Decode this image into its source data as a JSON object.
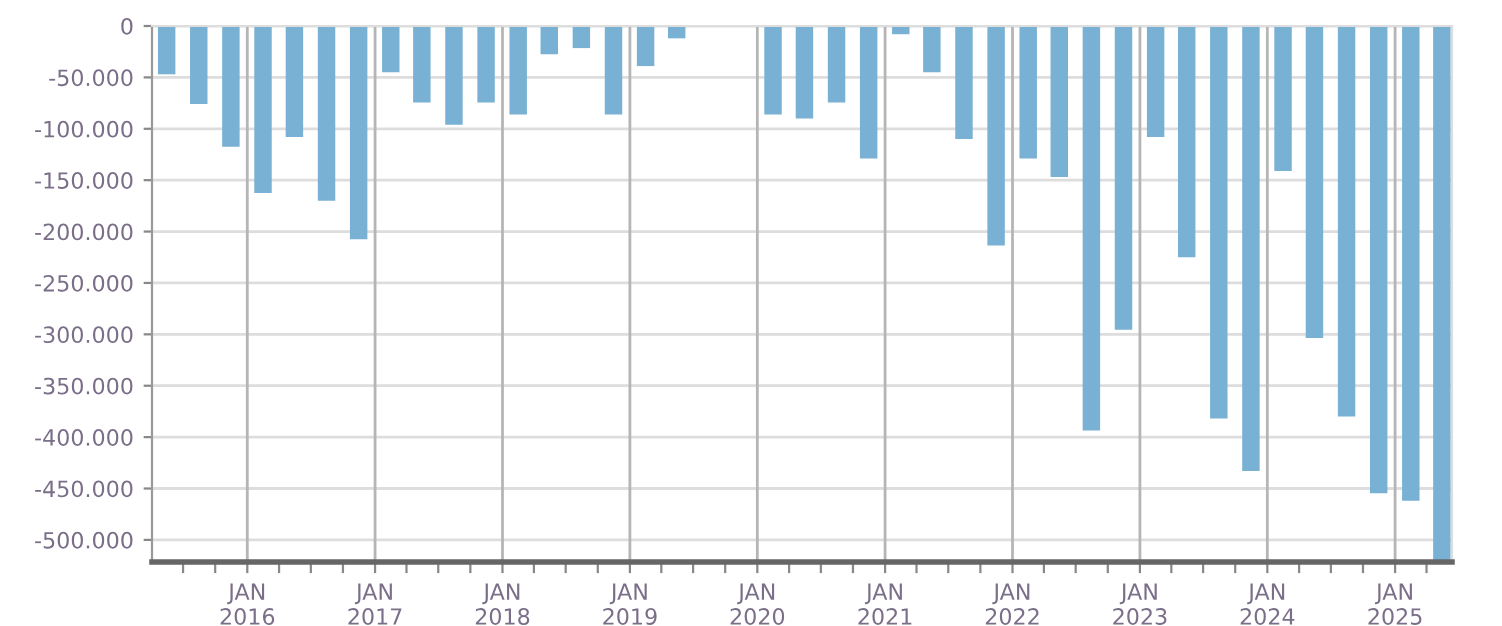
{
  "chart_data": {
    "type": "bar",
    "color": "#78b1d3",
    "grid": true,
    "x": [
      "2015-05-15",
      "2015-08-15",
      "2015-11-15",
      "2016-02-15",
      "2016-05-15",
      "2016-08-15",
      "2016-11-15",
      "2017-02-15",
      "2017-05-15",
      "2017-08-15",
      "2017-11-15",
      "2018-02-15",
      "2018-05-15",
      "2018-08-15",
      "2018-11-15",
      "2019-02-15",
      "2019-05-15",
      "2019-08-15",
      "2019-11-15",
      "2020-02-15",
      "2020-05-15",
      "2020-08-15",
      "2020-11-15",
      "2021-02-15",
      "2021-05-15",
      "2021-08-15",
      "2021-11-15",
      "2022-02-15",
      "2022-05-15",
      "2022-08-15",
      "2022-11-15",
      "2023-02-15",
      "2023-05-15",
      "2023-08-15",
      "2023-11-15",
      "2024-02-15",
      "2024-05-15",
      "2024-08-15",
      "2024-11-15",
      "2025-02-15",
      "2025-05-15"
    ],
    "values": [
      -47000,
      -76000,
      -117500,
      -162500,
      -108000,
      -170000,
      -207500,
      -45000,
      -74500,
      -96000,
      -74500,
      -86000,
      -27500,
      -21500,
      -86000,
      -39000,
      -12000,
      null,
      null,
      -86000,
      -90000,
      -74500,
      -129000,
      -8000,
      -45000,
      -110000,
      -213500,
      -129000,
      -147000,
      -393500,
      -295500,
      -108000,
      -225000,
      -382000,
      -433000,
      -141000,
      -303500,
      -380000,
      -454500,
      -462000,
      -521000
    ],
    "xlim": [
      "2015-04-03",
      "2025-06-13"
    ],
    "xticks": [
      {
        "value": "2015-07-01",
        "label": null
      },
      {
        "value": "2015-10-01",
        "label": null
      },
      {
        "value": "2016-01-01",
        "label": "JAN\n2016"
      },
      {
        "value": "2016-04-01",
        "label": null
      },
      {
        "value": "2016-07-01",
        "label": null
      },
      {
        "value": "2016-10-01",
        "label": null
      },
      {
        "value": "2017-01-01",
        "label": "JAN\n2017"
      },
      {
        "value": "2017-04-01",
        "label": null
      },
      {
        "value": "2017-07-01",
        "label": null
      },
      {
        "value": "2017-10-01",
        "label": null
      },
      {
        "value": "2018-01-01",
        "label": "JAN\n2018"
      },
      {
        "value": "2018-04-01",
        "label": null
      },
      {
        "value": "2018-07-01",
        "label": null
      },
      {
        "value": "2018-10-01",
        "label": null
      },
      {
        "value": "2019-01-01",
        "label": "JAN\n2019"
      },
      {
        "value": "2019-04-01",
        "label": null
      },
      {
        "value": "2019-07-01",
        "label": null
      },
      {
        "value": "2019-10-01",
        "label": null
      },
      {
        "value": "2020-01-01",
        "label": "JAN\n2020"
      },
      {
        "value": "2020-04-01",
        "label": null
      },
      {
        "value": "2020-07-01",
        "label": null
      },
      {
        "value": "2020-10-01",
        "label": null
      },
      {
        "value": "2021-01-01",
        "label": "JAN\n2021"
      },
      {
        "value": "2021-04-01",
        "label": null
      },
      {
        "value": "2021-07-01",
        "label": null
      },
      {
        "value": "2021-10-01",
        "label": null
      },
      {
        "value": "2022-01-01",
        "label": "JAN\n2022"
      },
      {
        "value": "2022-04-01",
        "label": null
      },
      {
        "value": "2022-07-01",
        "label": null
      },
      {
        "value": "2022-10-01",
        "label": null
      },
      {
        "value": "2023-01-01",
        "label": "JAN\n2023"
      },
      {
        "value": "2023-04-01",
        "label": null
      },
      {
        "value": "2023-07-01",
        "label": null
      },
      {
        "value": "2023-10-01",
        "label": null
      },
      {
        "value": "2024-01-01",
        "label": "JAN\n2024"
      },
      {
        "value": "2024-04-01",
        "label": null
      },
      {
        "value": "2024-07-01",
        "label": null
      },
      {
        "value": "2024-10-01",
        "label": null
      },
      {
        "value": "2025-01-01",
        "label": "JAN\n2025"
      },
      {
        "value": "2025-04-01",
        "label": null
      }
    ],
    "ylim": [
      -521500,
      0
    ],
    "yticks": [
      0,
      {
        "value": -50000,
        "label": "-50.000"
      },
      {
        "value": -100000,
        "label": "-100.000"
      },
      {
        "value": -150000,
        "label": "-150.000"
      },
      {
        "value": -200000,
        "label": "-200.000"
      },
      {
        "value": -250000,
        "label": "-250.000"
      },
      {
        "value": -300000,
        "label": "-300.000"
      },
      {
        "value": -350000,
        "label": "-350.000"
      },
      {
        "value": -400000,
        "label": "-400.000"
      },
      {
        "value": -450000,
        "label": "-450.000"
      },
      {
        "value": -500000,
        "label": "-500.000"
      }
    ]
  }
}
